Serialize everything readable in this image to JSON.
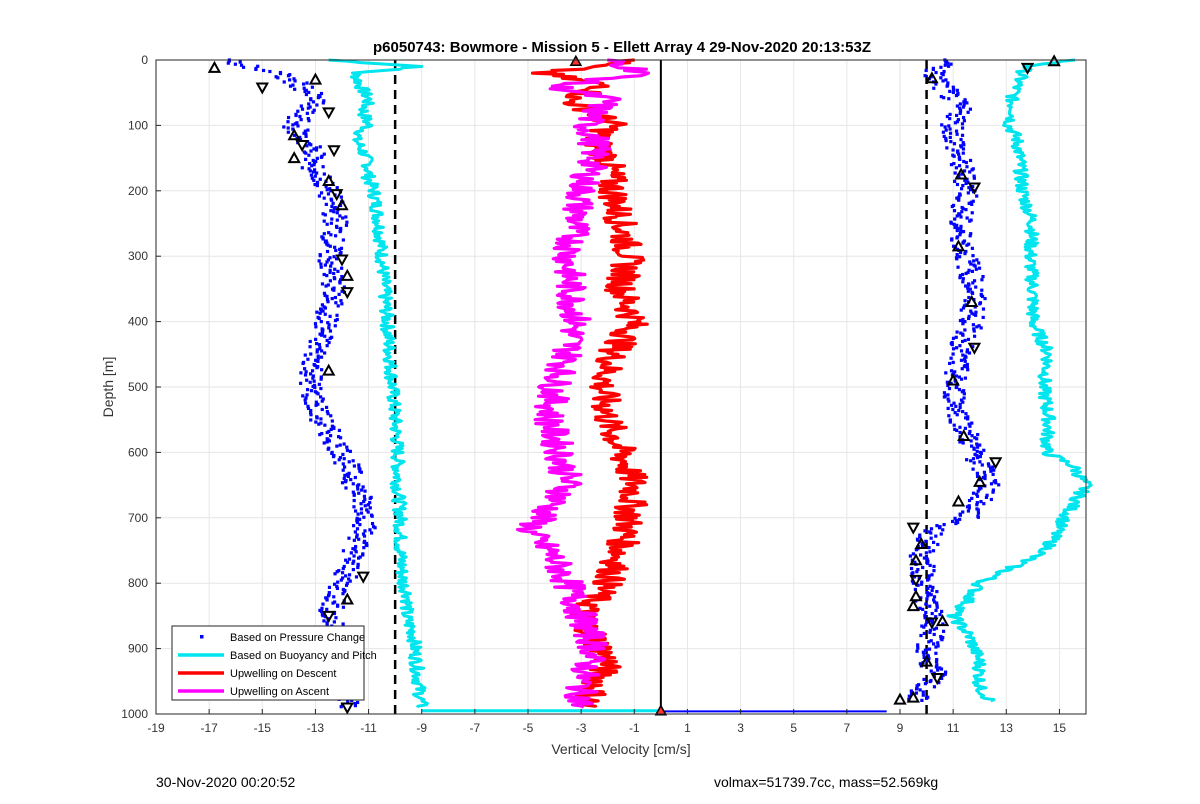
{
  "chart_data": {
    "type": "scatter",
    "title": "p6050743: Bowmore - Mission 5 - Ellett Array 4 29-Nov-2020 20:13:53Z",
    "xlabel": "Vertical Velocity [cm/s]",
    "ylabel": "Depth [m]",
    "xlim": [
      -19,
      16
    ],
    "ylim": [
      0,
      1000
    ],
    "y_reversed": true,
    "x_ticks": [
      -19,
      -17,
      -15,
      -13,
      -11,
      -9,
      -7,
      -5,
      -3,
      -1,
      1,
      3,
      5,
      7,
      9,
      11,
      13,
      15
    ],
    "y_ticks": [
      0,
      100,
      200,
      300,
      400,
      500,
      600,
      700,
      800,
      900,
      1000
    ],
    "grid": true,
    "legend_position": "bottom-left",
    "reference_lines": {
      "dashed_x": [
        -10,
        10
      ],
      "solid_x": [
        0
      ]
    },
    "series": [
      {
        "name": "Based on Pressure Change",
        "color": "#0000ff",
        "marker": "dot",
        "profiles": [
          {
            "depth": [
              0,
              20,
              40,
              60,
              80,
              100,
              120,
              140,
              160,
              180,
              200,
              250,
              300,
              350,
              400,
              450,
              500,
              550,
              600,
              650,
              700,
              750,
              800,
              850,
              900,
              950,
              990
            ],
            "values": [
              -16.5,
              -14.5,
              -13.5,
              -13.0,
              -13.5,
              -13.8,
              -13.5,
              -13.0,
              -13.2,
              -12.8,
              -12.5,
              -12.2,
              -12.5,
              -12.3,
              -12.6,
              -13.0,
              -13.2,
              -12.8,
              -12.0,
              -11.5,
              -11.0,
              -11.5,
              -12.0,
              -12.5,
              -12.0,
              -12.0,
              -11.8
            ]
          },
          {
            "depth": [
              0,
              20,
              40,
              60,
              80,
              100,
              150,
              200,
              250,
              300,
              350,
              400,
              450,
              500,
              550,
              600,
              650,
              700,
              720,
              760,
              800,
              840,
              870,
              900,
              940,
              980
            ],
            "values": [
              11.0,
              10.2,
              10.6,
              11.0,
              11.3,
              11.0,
              11.2,
              11.6,
              11.2,
              11.5,
              11.8,
              11.7,
              11.2,
              11.0,
              11.3,
              11.8,
              12.4,
              11.5,
              10.2,
              9.8,
              9.9,
              10.1,
              10.3,
              10.0,
              10.3,
              9.5
            ]
          }
        ]
      },
      {
        "name": "Based on Buoyancy and Pitch",
        "color": "#00e5ee",
        "marker": "line",
        "profiles": [
          {
            "depth": [
              0,
              10,
              20,
              40,
              60,
              80,
              100,
              120,
              140,
              160,
              180,
              200,
              250,
              300,
              350,
              400,
              450,
              500,
              550,
              600,
              650,
              700,
              750,
              800,
              820,
              850,
              880,
              920,
              960,
              990
            ],
            "values": [
              -12.5,
              -9.0,
              -11.5,
              -11.3,
              -11.0,
              -11.2,
              -11.0,
              -11.5,
              -11.2,
              -11.0,
              -11.0,
              -10.8,
              -10.6,
              -10.5,
              -10.4,
              -10.3,
              -10.2,
              -10.1,
              -10.0,
              -9.9,
              -9.9,
              -9.8,
              -9.8,
              -9.7,
              -9.5,
              -9.6,
              -9.3,
              -9.2,
              -9.1,
              -9.0
            ]
          },
          {
            "depth": [
              0,
              10,
              20,
              40,
              60,
              80,
              100,
              120,
              150,
              200,
              250,
              300,
              350,
              400,
              450,
              500,
              550,
              600,
              620,
              650,
              700,
              750,
              780,
              800,
              830,
              850,
              880,
              920,
              960,
              980
            ],
            "values": [
              15.5,
              13.8,
              13.6,
              13.4,
              13.2,
              13.3,
              13.1,
              13.4,
              13.5,
              13.6,
              14.0,
              13.9,
              14.0,
              14.0,
              14.6,
              14.4,
              14.6,
              14.5,
              15.5,
              16.0,
              15.2,
              14.5,
              13.0,
              12.0,
              11.5,
              11.0,
              11.6,
              12.0,
              12.0,
              12.4
            ]
          }
        ]
      },
      {
        "name": "Upwelling on Descent",
        "color": "#ff0000",
        "marker": "line",
        "profiles": [
          {
            "depth": [
              0,
              20,
              40,
              60,
              80,
              100,
              120,
              150,
              200,
              250,
              300,
              350,
              400,
              450,
              500,
              550,
              600,
              650,
              700,
              750,
              800,
              850,
              880,
              920,
              960,
              990
            ],
            "values": [
              -1.0,
              -4.5,
              -2.0,
              -3.5,
              -2.5,
              -1.8,
              -2.5,
              -2.0,
              -1.8,
              -1.5,
              -1.2,
              -1.5,
              -1.0,
              -1.8,
              -2.2,
              -2.0,
              -1.5,
              -1.0,
              -1.2,
              -1.5,
              -2.0,
              -3.0,
              -2.5,
              -2.0,
              -2.5,
              -2.8
            ]
          }
        ]
      },
      {
        "name": "Upwelling on Ascent",
        "color": "#ff00ff",
        "marker": "line",
        "profiles": [
          {
            "depth": [
              0,
              20,
              40,
              60,
              80,
              100,
              120,
              150,
              200,
              250,
              300,
              350,
              400,
              450,
              500,
              550,
              600,
              650,
              700,
              720,
              750,
              800,
              850,
              900,
              950,
              990
            ],
            "values": [
              -2.0,
              -0.5,
              -4.0,
              -2.0,
              -2.5,
              -2.8,
              -2.5,
              -2.5,
              -3.0,
              -3.2,
              -3.5,
              -3.4,
              -3.2,
              -3.5,
              -4.0,
              -4.2,
              -3.8,
              -3.5,
              -4.5,
              -5.0,
              -4.2,
              -3.5,
              -3.0,
              -2.5,
              -3.0,
              -3.0
            ]
          }
        ]
      }
    ],
    "highlight_markers": {
      "left": [
        [
          -16.8,
          12
        ],
        [
          -15.0,
          42
        ],
        [
          -13.0,
          30
        ],
        [
          -12.5,
          80
        ],
        [
          -13.8,
          115
        ],
        [
          -13.5,
          130
        ],
        [
          -13.8,
          150
        ],
        [
          -12.3,
          138
        ],
        [
          -12.5,
          185
        ],
        [
          -12.2,
          205
        ],
        [
          -12.0,
          222
        ],
        [
          -12.0,
          305
        ],
        [
          -11.8,
          330
        ],
        [
          -11.8,
          355
        ],
        [
          -12.5,
          475
        ],
        [
          -11.2,
          790
        ],
        [
          -11.8,
          825
        ],
        [
          -12.5,
          850
        ],
        [
          -12.0,
          950
        ],
        [
          -11.8,
          990
        ]
      ],
      "right": [
        [
          14.8,
          2
        ],
        [
          13.8,
          12
        ],
        [
          10.2,
          28
        ],
        [
          11.3,
          175
        ],
        [
          11.8,
          195
        ],
        [
          11.2,
          285
        ],
        [
          11.7,
          370
        ],
        [
          11.8,
          440
        ],
        [
          11.0,
          490
        ],
        [
          11.4,
          575
        ],
        [
          12.6,
          615
        ],
        [
          12.0,
          645
        ],
        [
          11.2,
          675
        ],
        [
          9.5,
          715
        ],
        [
          9.8,
          740
        ],
        [
          9.6,
          765
        ],
        [
          9.6,
          795
        ],
        [
          9.6,
          820
        ],
        [
          9.5,
          835
        ],
        [
          10.2,
          860
        ],
        [
          10.6,
          858
        ],
        [
          10.0,
          920
        ],
        [
          10.4,
          945
        ],
        [
          9.5,
          975
        ],
        [
          9.0,
          978
        ]
      ],
      "center": [
        [
          0.0,
          995
        ],
        [
          -3.2,
          2
        ]
      ]
    }
  },
  "footer": {
    "timestamp": "30-Nov-2020 00:20:52",
    "info": "volmax=51739.7cc, mass=52.569kg"
  }
}
